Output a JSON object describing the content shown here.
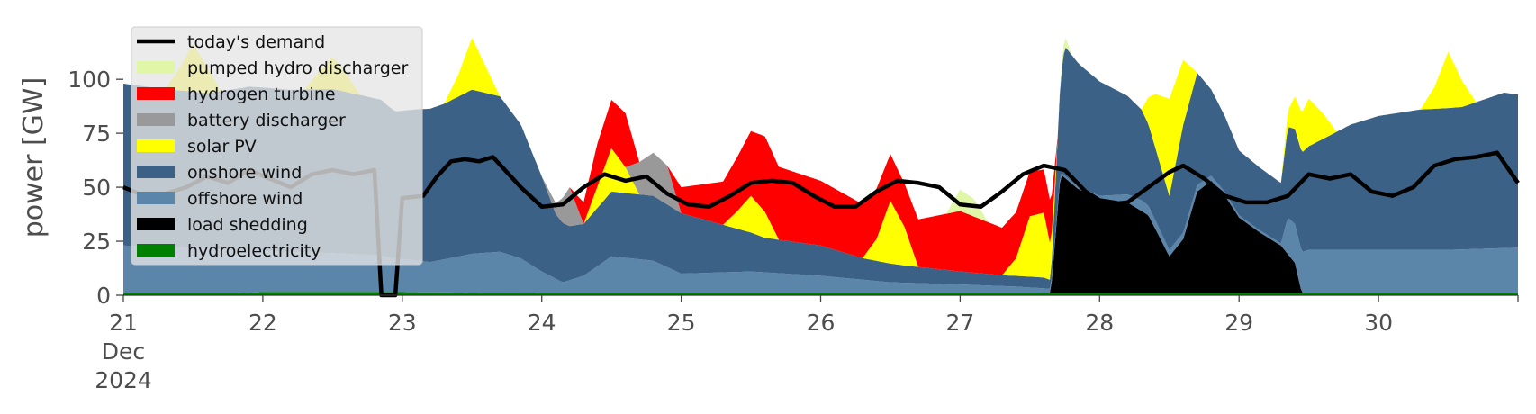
{
  "chart_data": {
    "type": "area",
    "title": "",
    "xlabel": "",
    "ylabel": "power [GW]",
    "ylim": [
      0,
      118
    ],
    "yticks": [
      0,
      25,
      50,
      75,
      100
    ],
    "xlim_days": [
      21,
      31
    ],
    "xticks": [
      "21",
      "22",
      "23",
      "24",
      "25",
      "26",
      "27",
      "28",
      "29",
      "30"
    ],
    "x_first_tick_lines": [
      "21",
      "Dec",
      "2024"
    ],
    "grid": false,
    "legend_position": "upper-left",
    "stack_order": [
      "hydroelectricity",
      "load shedding",
      "offshore wind",
      "onshore wind",
      "solar PV",
      "battery discharger",
      "hydrogen turbine",
      "pumped hydro discharger"
    ],
    "series": [
      {
        "name": "hydroelectricity",
        "color": "#008000",
        "x": [
          21,
          21.85,
          22.0,
          22.9,
          23.5,
          24.0,
          25.0,
          26.0,
          27.0,
          28.0,
          29.0,
          30.0,
          31.0
        ],
        "values": [
          1,
          1,
          1.5,
          1.5,
          1.2,
          1,
          1,
          1,
          1,
          1,
          1,
          1,
          1
        ]
      },
      {
        "name": "load shedding",
        "color": "#000000",
        "x": [
          21,
          27.65,
          27.72,
          27.85,
          28.0,
          28.2,
          28.35,
          28.5,
          28.6,
          28.7,
          28.8,
          28.9,
          29.0,
          29.15,
          29.3,
          29.4,
          29.45,
          31.0
        ],
        "values": [
          0,
          0,
          55,
          48,
          44,
          42,
          36,
          17,
          25,
          47,
          52,
          45,
          35,
          28,
          22,
          14,
          0,
          0
        ]
      },
      {
        "name": "offshore wind",
        "color": "#5c85aa",
        "x": [
          21,
          21.5,
          22.0,
          22.5,
          22.85,
          22.9,
          23.2,
          23.5,
          23.7,
          23.85,
          24.0,
          24.15,
          24.3,
          24.5,
          24.8,
          25.0,
          25.5,
          26.0,
          26.5,
          27.0,
          27.4,
          27.65,
          27.75,
          28.0,
          28.3,
          28.5,
          28.6,
          28.7,
          29.0,
          29.3,
          29.35,
          29.5,
          29.8,
          30.0,
          30.5,
          31.0
        ],
        "values": [
          22,
          21,
          19,
          18,
          17,
          16,
          14,
          18,
          19,
          16,
          10,
          5,
          8,
          17,
          15,
          9,
          10,
          8,
          5,
          4,
          3,
          2,
          1,
          1,
          5,
          3,
          3,
          3,
          1,
          1,
          17,
          20,
          20,
          20,
          20,
          21
        ]
      },
      {
        "name": "onshore wind",
        "color": "#3b6186",
        "x": [
          21,
          21.3,
          21.6,
          21.9,
          22.2,
          22.5,
          22.85,
          22.95,
          23.1,
          23.3,
          23.5,
          23.7,
          23.85,
          24.0,
          24.1,
          24.2,
          24.3,
          24.5,
          24.8,
          25.0,
          25.3,
          25.6,
          26.0,
          26.3,
          26.6,
          27.0,
          27.3,
          27.6,
          27.65,
          27.75,
          28.0,
          28.3,
          28.5,
          28.6,
          28.7,
          28.8,
          29.0,
          29.3,
          29.35,
          29.5,
          29.8,
          30.0,
          30.3,
          30.6,
          30.9,
          31.0
        ],
        "values": [
          75,
          73,
          72,
          76,
          75,
          76,
          72,
          68,
          70,
          72,
          76,
          72,
          62,
          44,
          30,
          25,
          24,
          30,
          30,
          28,
          22,
          16,
          14,
          10,
          8,
          6,
          5,
          5,
          4,
          60,
          53,
          42,
          25,
          50,
          52,
          40,
          30,
          28,
          42,
          48,
          58,
          62,
          65,
          66,
          72,
          71
        ]
      },
      {
        "name": "solar PV",
        "color": "#ffff00",
        "x": [
          21,
          21.3,
          21.4,
          21.5,
          21.6,
          21.7,
          21.8,
          22.3,
          22.4,
          22.5,
          22.6,
          22.7,
          23.3,
          23.4,
          23.5,
          23.6,
          23.7,
          24.2,
          24.3,
          24.4,
          24.5,
          24.6,
          24.7,
          25.3,
          25.4,
          25.5,
          25.6,
          25.7,
          26.3,
          26.4,
          26.5,
          26.6,
          26.7,
          27.3,
          27.4,
          27.5,
          27.6,
          27.7,
          28.3,
          28.4,
          28.5,
          28.6,
          28.7,
          29.3,
          29.4,
          29.5,
          29.6,
          29.7,
          30.3,
          30.4,
          30.5,
          30.6,
          30.7,
          31.0
        ],
        "values": [
          0,
          0,
          10,
          22,
          12,
          0,
          0,
          0,
          8,
          15,
          8,
          0,
          0,
          10,
          24,
          12,
          0,
          0,
          0,
          10,
          20,
          12,
          0,
          0,
          8,
          17,
          12,
          0,
          0,
          10,
          29,
          18,
          0,
          0,
          8,
          28,
          30,
          0,
          0,
          25,
          45,
          30,
          0,
          0,
          15,
          22,
          12,
          0,
          0,
          10,
          26,
          12,
          0,
          0
        ]
      },
      {
        "name": "battery discharger",
        "color": "#999999",
        "x": [
          21,
          24.0,
          24.1,
          24.2,
          24.3,
          24.6,
          24.7,
          24.8,
          24.9,
          25.0,
          31.0
        ],
        "values": [
          0,
          0,
          5,
          18,
          0,
          0,
          15,
          20,
          18,
          0,
          0
        ]
      },
      {
        "name": "hydrogen turbine",
        "color": "#ff0000",
        "x": [
          21,
          24.2,
          24.4,
          24.6,
          24.7,
          24.9,
          25.0,
          25.3,
          25.6,
          26.0,
          26.3,
          26.6,
          27.0,
          27.3,
          27.6,
          27.65,
          27.7,
          31.0
        ],
        "values": [
          0,
          0,
          20,
          25,
          0,
          0,
          12,
          20,
          35,
          30,
          25,
          20,
          28,
          22,
          20,
          20,
          0,
          0
        ]
      },
      {
        "name": "pumped hydro discharger",
        "color": "#dff7a6",
        "x": [
          21,
          26.9,
          27.0,
          27.1,
          27.2,
          27.7,
          27.75,
          27.8,
          31.0
        ],
        "values": [
          0,
          0,
          10,
          8,
          0,
          0,
          5,
          0,
          0
        ]
      }
    ],
    "demand": {
      "name": "today's demand",
      "color": "#000000",
      "x": [
        21,
        21.15,
        21.3,
        21.45,
        21.6,
        21.75,
        21.9,
        22.05,
        22.2,
        22.35,
        22.5,
        22.65,
        22.8,
        22.85,
        22.88,
        22.92,
        22.95,
        23.0,
        23.15,
        23.25,
        23.35,
        23.45,
        23.55,
        23.65,
        23.75,
        23.85,
        24.0,
        24.15,
        24.3,
        24.45,
        24.6,
        24.75,
        24.9,
        25.05,
        25.2,
        25.35,
        25.5,
        25.65,
        25.8,
        25.95,
        26.1,
        26.25,
        26.4,
        26.55,
        26.7,
        26.85,
        27.0,
        27.15,
        27.3,
        27.45,
        27.6,
        27.75,
        27.9,
        28.05,
        28.2,
        28.35,
        28.5,
        28.6,
        28.75,
        28.9,
        29.05,
        29.2,
        29.35,
        29.5,
        29.65,
        29.8,
        29.95,
        30.1,
        30.25,
        30.4,
        30.55,
        30.7,
        30.85,
        31.0
      ],
      "values": [
        50,
        46,
        47,
        50,
        55,
        52,
        58,
        54,
        50,
        56,
        58,
        56,
        58,
        0,
        0,
        0,
        0,
        45,
        46,
        55,
        62,
        63,
        62,
        64,
        57,
        50,
        41,
        42,
        50,
        56,
        53,
        55,
        47,
        42,
        41,
        46,
        52,
        53,
        52,
        46,
        41,
        41,
        48,
        53,
        52,
        50,
        42,
        41,
        48,
        56,
        60,
        58,
        48,
        42,
        43,
        50,
        57,
        60,
        54,
        46,
        43,
        43,
        46,
        56,
        54,
        56,
        48,
        46,
        50,
        60,
        63,
        64,
        66,
        52
      ]
    },
    "legend": [
      "today's demand",
      "pumped hydro discharger",
      "hydrogen turbine",
      "battery discharger",
      "solar PV",
      "onshore wind",
      "offshore wind",
      "load shedding",
      "hydroelectricity"
    ]
  }
}
